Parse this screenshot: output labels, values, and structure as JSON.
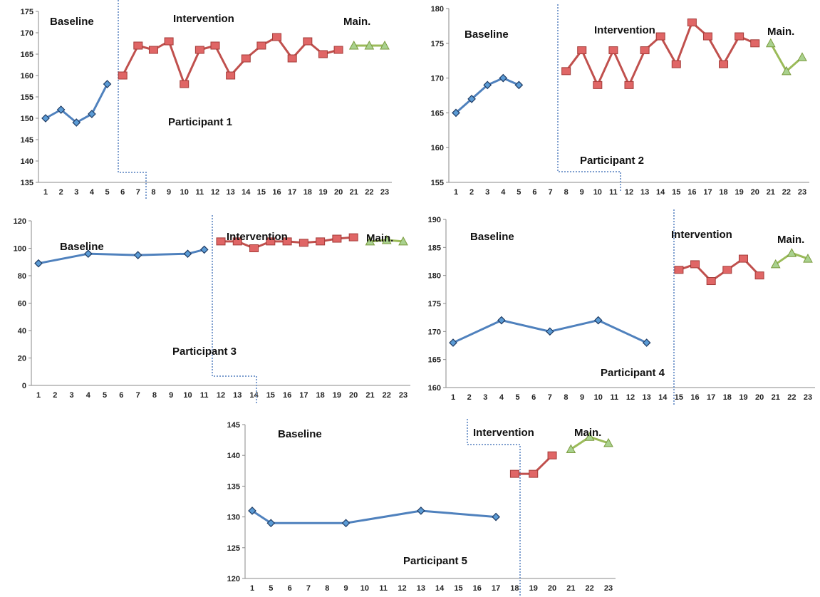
{
  "colors": {
    "baseline_line": "#4f81bd",
    "baseline_marker": "#5b9bd5",
    "intervention_line": "#c0504d",
    "intervention_marker": "#e06666",
    "maintenance_line": "#9bbb59",
    "maintenance_marker": "#a9d18e",
    "phase_line": "#7f9fcf",
    "axis": "#8a8a8a"
  },
  "chart_data": [
    {
      "type": "line",
      "participant_label": "Participant 1",
      "phase_labels": [
        "Baseline",
        "Intervention",
        "Main."
      ],
      "x_ticks": [
        1,
        2,
        3,
        4,
        5,
        6,
        7,
        8,
        9,
        10,
        11,
        12,
        13,
        14,
        15,
        16,
        17,
        18,
        19,
        20,
        21,
        22,
        23
      ],
      "y_ticks": [
        135,
        140,
        145,
        150,
        155,
        160,
        165,
        170,
        175
      ],
      "ylim": [
        135,
        175
      ],
      "xlim": [
        1,
        23
      ],
      "series": [
        {
          "phase": "baseline",
          "marker": "diamond",
          "x": [
            1,
            2,
            3,
            4,
            5
          ],
          "y": [
            150,
            152,
            149,
            151,
            158
          ]
        },
        {
          "phase": "intervention",
          "marker": "square",
          "x": [
            6,
            7,
            8,
            9,
            10,
            11,
            12,
            13,
            14,
            15,
            16,
            17,
            18,
            19,
            20
          ],
          "y": [
            160,
            167,
            166,
            168,
            158,
            166,
            167,
            160,
            164,
            167,
            169,
            164,
            168,
            165,
            166
          ]
        },
        {
          "phase": "maintenance",
          "marker": "triangle",
          "x": [
            21,
            22,
            23
          ],
          "y": [
            167,
            167,
            167
          ]
        }
      ]
    },
    {
      "type": "line",
      "participant_label": "Participant 2",
      "phase_labels": [
        "Baseline",
        "Intervention",
        "Main."
      ],
      "x_ticks": [
        1,
        2,
        3,
        4,
        5,
        6,
        7,
        8,
        9,
        10,
        11,
        12,
        13,
        14,
        15,
        16,
        17,
        18,
        19,
        20,
        21,
        22,
        23
      ],
      "y_ticks": [
        155,
        160,
        165,
        170,
        175,
        180
      ],
      "ylim": [
        155,
        180
      ],
      "xlim": [
        1,
        23
      ],
      "series": [
        {
          "phase": "baseline",
          "marker": "diamond",
          "x": [
            1,
            2,
            3,
            4,
            5
          ],
          "y": [
            165,
            167,
            169,
            170,
            169
          ]
        },
        {
          "phase": "intervention",
          "marker": "square",
          "x": [
            8,
            9,
            10,
            11,
            12,
            13,
            14,
            15,
            16,
            17,
            18,
            19,
            20
          ],
          "y": [
            171,
            174,
            169,
            174,
            169,
            174,
            176,
            172,
            178,
            176,
            172,
            176,
            175
          ]
        },
        {
          "phase": "maintenance",
          "marker": "triangle",
          "x": [
            21,
            22,
            23
          ],
          "y": [
            175,
            171,
            173
          ]
        }
      ]
    },
    {
      "type": "line",
      "participant_label": "Participant 3",
      "phase_labels": [
        "Baseline",
        "Intervention",
        "Main."
      ],
      "x_ticks": [
        1,
        2,
        3,
        4,
        5,
        6,
        7,
        8,
        9,
        10,
        11,
        12,
        13,
        14,
        15,
        16,
        17,
        18,
        19,
        20,
        21,
        22,
        23
      ],
      "y_ticks": [
        0,
        20,
        40,
        60,
        80,
        100,
        120
      ],
      "ylim": [
        0,
        120
      ],
      "xlim": [
        1,
        23
      ],
      "series": [
        {
          "phase": "baseline",
          "marker": "diamond",
          "x": [
            1,
            4,
            7,
            10,
            11
          ],
          "y": [
            89,
            96,
            95,
            96,
            99
          ]
        },
        {
          "phase": "intervention",
          "marker": "square",
          "x": [
            12,
            13,
            14,
            15,
            16,
            17,
            18,
            19,
            20
          ],
          "y": [
            105,
            105,
            100,
            105,
            105,
            104,
            105,
            107,
            108
          ]
        },
        {
          "phase": "maintenance",
          "marker": "triangle",
          "x": [
            21,
            22,
            23
          ],
          "y": [
            105,
            106,
            105
          ]
        }
      ]
    },
    {
      "type": "line",
      "participant_label": "Participant 4",
      "phase_labels": [
        "Baseline",
        "Intervention",
        "Main."
      ],
      "x_ticks": [
        1,
        2,
        3,
        4,
        5,
        6,
        7,
        8,
        9,
        10,
        11,
        12,
        13,
        14,
        15,
        16,
        17,
        18,
        19,
        20,
        21,
        22,
        23
      ],
      "y_ticks": [
        160,
        165,
        170,
        175,
        180,
        185,
        190
      ],
      "ylim": [
        160,
        190
      ],
      "xlim": [
        1,
        23
      ],
      "series": [
        {
          "phase": "baseline",
          "marker": "diamond",
          "x": [
            1,
            4,
            7,
            10,
            13
          ],
          "y": [
            168,
            172,
            170,
            172,
            168
          ]
        },
        {
          "phase": "intervention",
          "marker": "square",
          "x": [
            15,
            16,
            17,
            18,
            19,
            20
          ],
          "y": [
            181,
            182,
            179,
            181,
            183,
            180
          ]
        },
        {
          "phase": "maintenance",
          "marker": "triangle",
          "x": [
            21,
            22,
            23
          ],
          "y": [
            182,
            184,
            183
          ]
        }
      ]
    },
    {
      "type": "line",
      "participant_label": "Participant 5",
      "phase_labels": [
        "Baseline",
        "Intervention",
        "Main."
      ],
      "x_ticks": [
        1,
        5,
        6,
        7,
        8,
        9,
        10,
        11,
        12,
        13,
        14,
        15,
        16,
        17,
        18,
        19,
        20,
        21,
        22,
        23
      ],
      "y_ticks": [
        120,
        125,
        130,
        135,
        140,
        145
      ],
      "ylim": [
        120,
        145
      ],
      "xlim": [
        1,
        23
      ],
      "series": [
        {
          "phase": "baseline",
          "marker": "diamond",
          "x": [
            1,
            5,
            9,
            13,
            17
          ],
          "y": [
            131,
            129,
            129,
            131,
            130
          ]
        },
        {
          "phase": "intervention",
          "marker": "square",
          "x": [
            18,
            19,
            20
          ],
          "y": [
            137,
            137,
            140
          ]
        },
        {
          "phase": "maintenance",
          "marker": "triangle",
          "x": [
            21,
            22,
            23
          ],
          "y": [
            141,
            143,
            142
          ]
        }
      ]
    }
  ]
}
